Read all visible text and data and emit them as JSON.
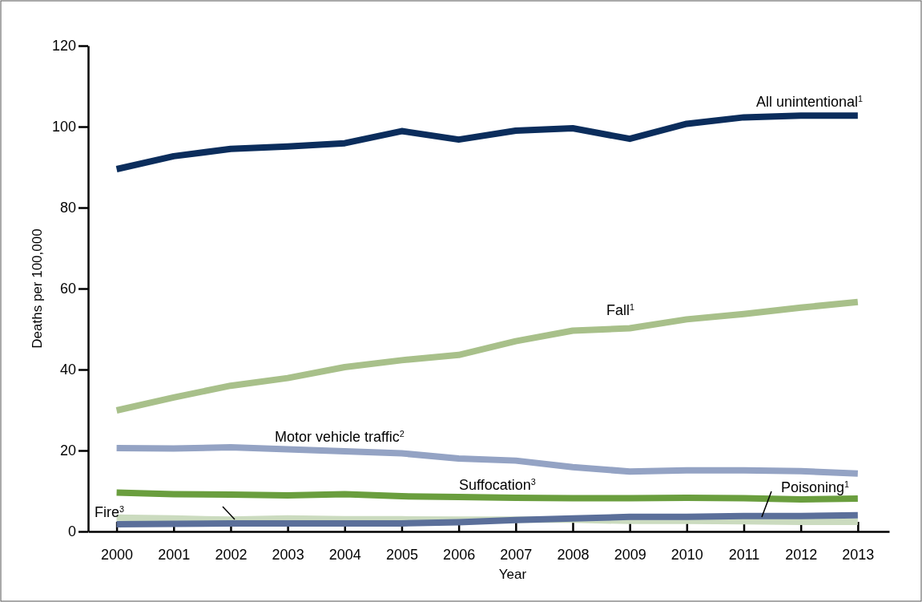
{
  "chart_data": {
    "type": "line",
    "xlabel": "Year",
    "ylabel": "Deaths per 100,000",
    "x": [
      2000,
      2001,
      2002,
      2003,
      2004,
      2005,
      2006,
      2007,
      2008,
      2009,
      2010,
      2011,
      2012,
      2013
    ],
    "xlim": [
      1999.5,
      2013.55
    ],
    "xticks": [
      2000,
      2001,
      2002,
      2003,
      2004,
      2005,
      2006,
      2007,
      2008,
      2009,
      2010,
      2011,
      2012,
      2013
    ],
    "ylim": [
      0,
      120
    ],
    "yticks": [
      0,
      20,
      40,
      60,
      80,
      100,
      120
    ],
    "grid": false,
    "legend": false,
    "marker": "none",
    "line_style": "solid",
    "series": [
      {
        "name": "All unintentional$^{1}$",
        "color": "#0b2d5c",
        "values": [
          89.5,
          92.7,
          94.5,
          95.1,
          95.9,
          98.9,
          96.8,
          99.0,
          99.6,
          97.0,
          100.7,
          102.3,
          102.7,
          102.7
        ]
      },
      {
        "name": "Fall$^{1}$",
        "color": "#a8c08a",
        "values": [
          29.9,
          33.1,
          36.0,
          37.9,
          40.6,
          42.3,
          43.6,
          47.0,
          49.6,
          50.2,
          52.4,
          53.7,
          55.3,
          56.7
        ]
      },
      {
        "name": "Motor vehicle traffic$^{2}$",
        "color": "#94a3c4",
        "values": [
          20.6,
          20.5,
          20.8,
          20.3,
          19.8,
          19.3,
          18.0,
          17.5,
          15.9,
          14.8,
          15.1,
          15.1,
          14.9,
          14.3
        ]
      },
      {
        "name": "Suffocation$^{3}$",
        "color": "#6a9e3e",
        "values": [
          9.6,
          9.2,
          9.1,
          8.9,
          9.2,
          8.7,
          8.5,
          8.3,
          8.2,
          8.2,
          8.3,
          8.2,
          7.9,
          8.1
        ]
      },
      {
        "name": "Fire$^{3}$",
        "color": "#cbdbbf",
        "values": [
          3.4,
          3.2,
          2.9,
          3.2,
          3.0,
          3.0,
          2.9,
          2.9,
          2.9,
          2.6,
          2.6,
          2.5,
          2.4,
          2.4
        ]
      },
      {
        "name": "Poisoning$^{1}$",
        "color": "#5b6f9a",
        "values": [
          1.8,
          1.9,
          2.0,
          2.0,
          2.0,
          2.0,
          2.3,
          2.8,
          3.2,
          3.6,
          3.6,
          3.8,
          3.8,
          4.0
        ]
      }
    ]
  }
}
